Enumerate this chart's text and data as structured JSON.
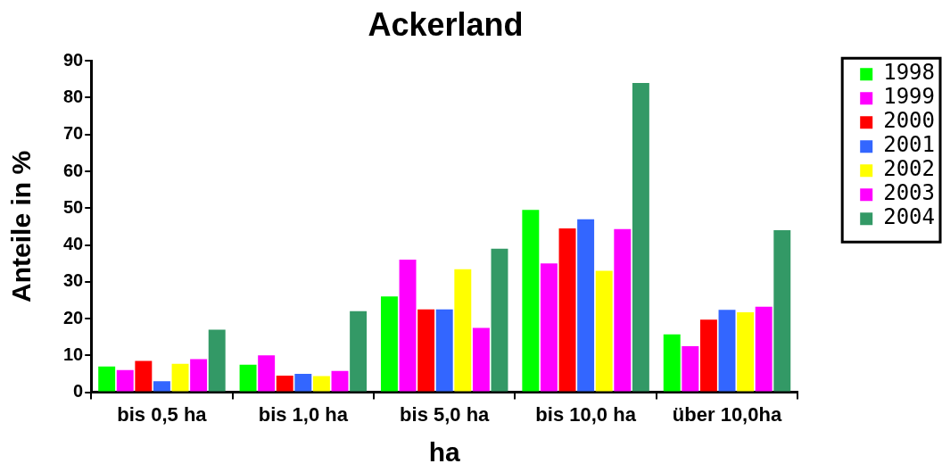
{
  "chart_data": {
    "type": "bar",
    "title": "Ackerland",
    "xlabel": "ha",
    "ylabel": "Anteile in %",
    "categories": [
      "bis 0,5 ha",
      "bis 1,0 ha",
      "bis 5,0 ha",
      "bis 10,0 ha",
      "über 10,0ha"
    ],
    "series": [
      {
        "name": "1998",
        "color": "#00ff00",
        "values": [
          7,
          7.5,
          26,
          49.5,
          15.7
        ]
      },
      {
        "name": "1999",
        "color": "#ff00ff",
        "values": [
          6,
          10,
          36,
          35,
          12.5
        ]
      },
      {
        "name": "2000",
        "color": "#ff0000",
        "values": [
          8.5,
          4.5,
          22.5,
          44.5,
          19.7
        ]
      },
      {
        "name": "2001",
        "color": "#3366ff",
        "values": [
          3,
          5,
          22.5,
          47,
          22.4
        ]
      },
      {
        "name": "2002",
        "color": "#ffff00",
        "values": [
          7.7,
          4.4,
          33.4,
          33,
          21.7
        ]
      },
      {
        "name": "2003",
        "color": "#ff00ff",
        "values": [
          9,
          5.8,
          17.5,
          44.3,
          23.2
        ]
      },
      {
        "name": "2004",
        "color": "#339966",
        "values": [
          17,
          22,
          39,
          84,
          44
        ]
      }
    ],
    "ylim": [
      0,
      90
    ],
    "yticks": [
      0,
      10,
      20,
      30,
      40,
      50,
      60,
      70,
      80,
      90
    ],
    "grid": false,
    "legend": "top right"
  }
}
